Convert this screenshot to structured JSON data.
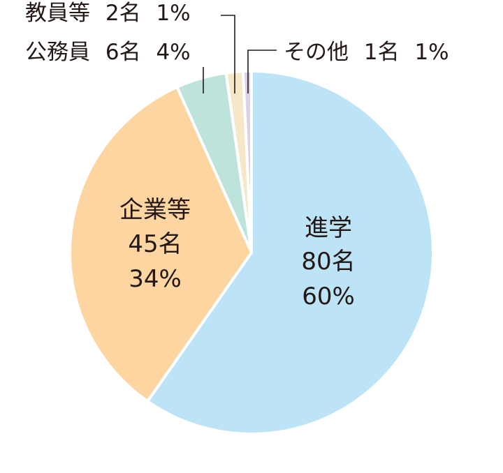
{
  "chart_data": {
    "type": "pie",
    "start_angle_deg": 0,
    "direction": "clockwise",
    "slices": [
      {
        "name": "進学",
        "count": "80名",
        "percent": "60%",
        "value": 80,
        "color": "#bde3f7"
      },
      {
        "name": "企業等",
        "count": "45名",
        "percent": "34%",
        "value": 45,
        "color": "#fcd5a0"
      },
      {
        "name": "公務員",
        "count": "6名",
        "percent": "4%",
        "value": 6,
        "color": "#bde3da"
      },
      {
        "name": "教員等",
        "count": "2名",
        "percent": "1%",
        "value": 2,
        "color": "#f5e7c8"
      },
      {
        "name": "その他",
        "count": "1名",
        "percent": "1%",
        "value": 1,
        "color": "#ddd0ea"
      }
    ]
  }
}
